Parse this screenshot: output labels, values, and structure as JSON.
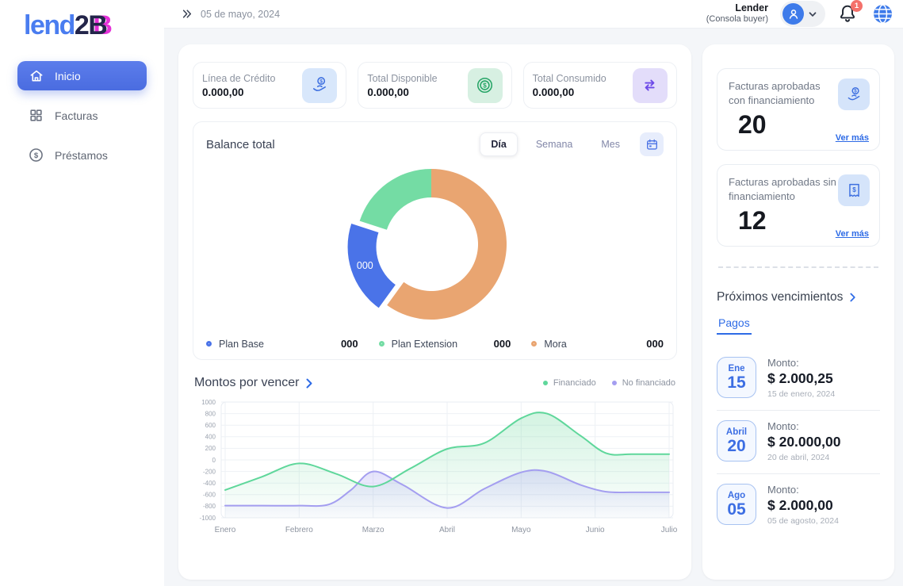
{
  "brand": {
    "logo_lend": "lend",
    "logo_2": "2",
    "logo_B": "B"
  },
  "topbar": {
    "date": "05 de mayo, 2024",
    "user_name": "Lender",
    "user_role": "(Consola buyer)",
    "notification_count": "1"
  },
  "sidebar": {
    "items": [
      {
        "label": "Inicio",
        "icon": "home-icon",
        "active": true
      },
      {
        "label": "Facturas",
        "icon": "grid-icon",
        "active": false
      },
      {
        "label": "Préstamos",
        "icon": "loan-icon",
        "active": false
      }
    ]
  },
  "stats": {
    "cards": [
      {
        "label": "Línea de Crédito",
        "value": "0.000,00",
        "icon": "hand-coin-icon",
        "accent": "#3D6FE0"
      },
      {
        "label": "Total Disponible",
        "value": "0.000,00",
        "icon": "coins-icon",
        "accent": "#27A567"
      },
      {
        "label": "Total Consumido",
        "value": "0.000,00",
        "icon": "transfer-icon",
        "accent": "#6D4AE8"
      }
    ]
  },
  "balance": {
    "title": "Balance total",
    "tabs": [
      "Día",
      "Semana",
      "Mes"
    ],
    "active_tab": "Día",
    "legend": [
      {
        "label": "Plan Base",
        "value": "000",
        "color": "#4A73E8"
      },
      {
        "label": "Plan Extension",
        "value": "000",
        "color": "#74DCA4"
      },
      {
        "label": "Mora",
        "value": "000",
        "color": "#E9A571"
      }
    ]
  },
  "montos": {
    "title": "Montos por vencer",
    "legend": [
      {
        "label": "Financiado",
        "color": "#5FD79B"
      },
      {
        "label": "No financiado",
        "color": "#A49EF0"
      }
    ]
  },
  "right_panel": {
    "cards": [
      {
        "title": "Facturas aprobadas con financiamiento",
        "count": "20",
        "link_label": "Ver más",
        "icon": "hand-coin-icon"
      },
      {
        "title": "Facturas aprobadas sin financiamiento",
        "count": "12",
        "link_label": "Ver más",
        "icon": "receipt-icon"
      }
    ],
    "upcoming": {
      "title": "Próximos vencimientos",
      "tab_label": "Pagos",
      "payments": [
        {
          "month": "Ene",
          "day": "15",
          "amount_label": "Monto:",
          "amount": "$ 2.000,25",
          "date": "15 de enero, 2024"
        },
        {
          "month": "Abril",
          "day": "20",
          "amount_label": "Monto:",
          "amount": "$ 20.000,00",
          "date": "20 de abril, 2024"
        },
        {
          "month": "Ago",
          "day": "05",
          "amount_label": "Monto:",
          "amount": "$ 2.000,00",
          "date": "05 de agosto, 2024"
        }
      ]
    }
  },
  "chart_data": [
    {
      "type": "pie",
      "title": "Balance total",
      "donut": true,
      "center_label_on_segment": "Plan Base",
      "segments": [
        {
          "label": "Mora",
          "pct": 60,
          "color": "#E9A571",
          "display_value": "000"
        },
        {
          "label": "Plan Base",
          "pct": 20,
          "color": "#4A73E8",
          "display_value": "000",
          "exploded": true,
          "value_label": "000"
        },
        {
          "label": "Plan Extension",
          "pct": 20,
          "color": "#74DCA4",
          "display_value": "000"
        }
      ],
      "legend_order": [
        "Plan Base",
        "Plan Extension",
        "Mora"
      ]
    },
    {
      "type": "area",
      "title": "Montos por vencer",
      "x_labels": [
        "Enero",
        "Febrero",
        "Marzo",
        "Abril",
        "Mayo",
        "Junio",
        "Julio"
      ],
      "ylim": [
        -1000,
        1000
      ],
      "ytick_step": 200,
      "grid": true,
      "legend_position": "top-right",
      "series": [
        {
          "name": "Financiado",
          "color": "#5FD79B",
          "x": [
            0,
            0.5,
            1,
            1.5,
            2,
            2.5,
            3,
            3.5,
            4,
            4.35,
            4.8,
            5.15,
            5.5,
            6
          ],
          "y": [
            -520,
            -290,
            -60,
            -240,
            -460,
            -150,
            190,
            290,
            720,
            800,
            420,
            115,
            100,
            100
          ]
        },
        {
          "name": "No financiado",
          "color": "#A49EF0",
          "x": [
            0,
            0.5,
            1,
            1.4,
            1.7,
            2,
            2.4,
            3,
            3.5,
            4,
            4.35,
            4.8,
            5.15,
            5.5,
            6
          ],
          "y": [
            -790,
            -790,
            -790,
            -770,
            -520,
            -200,
            -430,
            -830,
            -500,
            -215,
            -200,
            -430,
            -550,
            -560,
            -560
          ]
        }
      ]
    }
  ]
}
